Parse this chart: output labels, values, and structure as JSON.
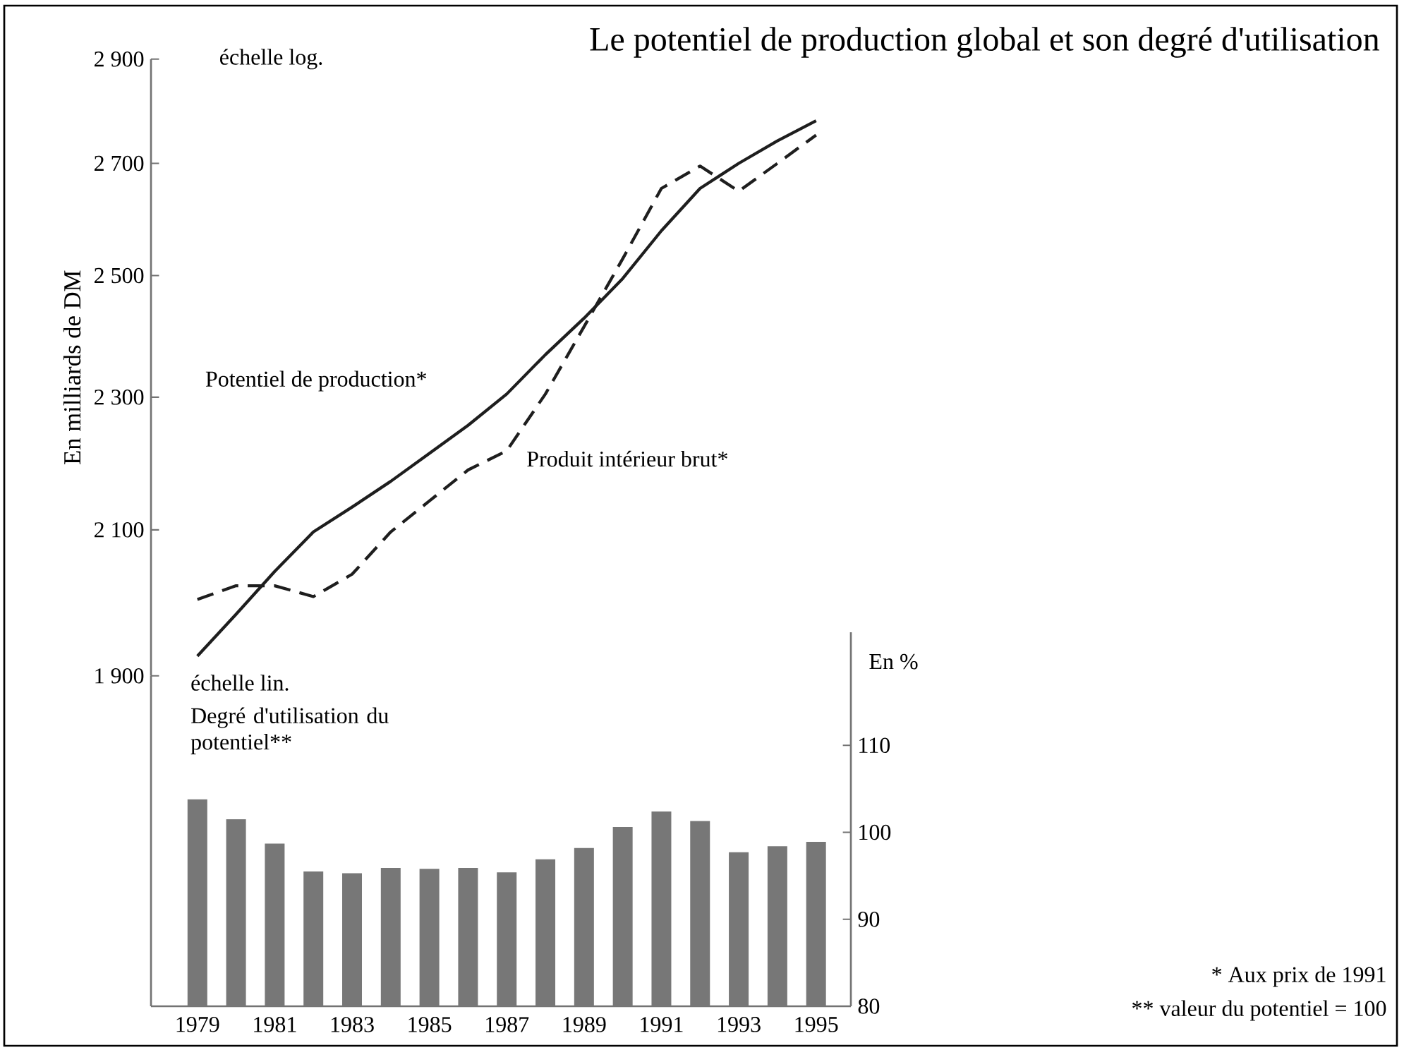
{
  "chart_data": [
    {
      "type": "line",
      "title": "Le potentiel de production global et son degré d'utilisation",
      "ylabel": "En milliards de DM",
      "log": "y",
      "tick_labels": "y",
      "categories": [
        null,
        null,
        null,
        null,
        null,
        null,
        null,
        null,
        null,
        null,
        null,
        null,
        null,
        null,
        null,
        null,
        null
      ],
      "ylim": [
        1900,
        2900
      ],
      "yticks": [
        {
          "value": 1900,
          "label": "1 900"
        },
        {
          "value": 2100,
          "label": "2 100"
        },
        {
          "value": 2300,
          "label": "2 300"
        },
        {
          "value": 2500,
          "label": "2 500"
        },
        {
          "value": 2700,
          "label": "2 700"
        },
        {
          "value": 2900,
          "label": "2 900"
        }
      ],
      "annotations": [
        "échelle log."
      ],
      "series": [
        {
          "name": "Potentiel de production*",
          "color": "#1e1e1e",
          "line_style": "solid",
          "values": [
            1926,
            1982,
            2041,
            2097,
            2133,
            2171,
            2213,
            2256,
            2305,
            2368,
            2428,
            2495,
            2578,
            2654,
            2700,
            2742,
            2780
          ]
        },
        {
          "name": "Produit intérieur brut*",
          "color": "#1e1e1e",
          "line_style": "dashed",
          "values": [
            2002,
            2021,
            2021,
            2006,
            2037,
            2097,
            2142,
            2188,
            2217,
            2305,
            2414,
            2529,
            2654,
            2695,
            2649,
            2700,
            2753
          ]
        }
      ]
    },
    {
      "type": "bar",
      "ylabel": "En %",
      "categories": [
        "1979",
        null,
        "1981",
        null,
        "1983",
        null,
        "1985",
        null,
        "1987",
        null,
        "1989",
        null,
        "1991",
        null,
        "1993",
        null,
        "1995"
      ],
      "ylim": [
        80,
        123
      ],
      "yticks": [
        80,
        90,
        100,
        110
      ],
      "annotations": [
        "échelle lin.",
        "* Aux prix de 1991",
        "** valeur du potentiel = 100"
      ],
      "series": [
        {
          "name": "Degré d'utilisation du potentiel**",
          "color": "#777777",
          "values": [
            103.8,
            101.5,
            98.7,
            95.5,
            95.3,
            95.9,
            95.8,
            95.9,
            95.4,
            96.9,
            98.2,
            100.6,
            102.4,
            101.3,
            97.7,
            98.4,
            98.9
          ]
        }
      ]
    }
  ]
}
